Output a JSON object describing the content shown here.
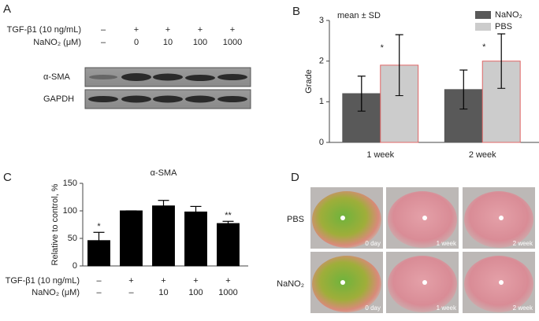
{
  "panels": {
    "a": "A",
    "b": "B",
    "c": "C",
    "d": "D"
  },
  "blot": {
    "rows": [
      {
        "label": "TGF-β1 (10 ng/mL)",
        "values": [
          "–",
          "+",
          "+",
          "+",
          "+"
        ]
      },
      {
        "label": "NaNO₂ (μM)",
        "values": [
          "–",
          "0",
          "10",
          "100",
          "1000"
        ]
      }
    ],
    "bands": [
      "α-SMA",
      "GAPDH"
    ]
  },
  "chart_data": [
    {
      "type": "bar",
      "annotation": "mean ± SD",
      "y_label": "Grade",
      "categories": [
        "1 week",
        "2 week"
      ],
      "series": [
        {
          "name": "NaNO₂",
          "color": "#595959",
          "edge": "#595959",
          "values": [
            1.2,
            1.3
          ],
          "errors": [
            0.43,
            0.48
          ],
          "annotations": [
            null,
            null
          ]
        },
        {
          "name": "PBS",
          "color": "#cccccc",
          "edge": "#e06666",
          "values": [
            1.9,
            2.0
          ],
          "errors": [
            0.75,
            0.67
          ],
          "annotations": [
            "*",
            "*"
          ]
        }
      ],
      "error_bars": "both",
      "ylim": [
        0,
        3
      ],
      "yticks": [
        0,
        1,
        2,
        3
      ],
      "legend": "top-right"
    },
    {
      "type": "bar",
      "title": "α-SMA",
      "y_label": "Relative to control, %",
      "category_rows": [
        {
          "label": "TGF-β1 (10 ng/mL)",
          "values": [
            "–",
            "+",
            "+",
            "+",
            "+"
          ]
        },
        {
          "label": "NaNO₂ (μM)",
          "values": [
            "–",
            "–",
            "10",
            "100",
            "1000"
          ]
        }
      ],
      "values": [
        46,
        100,
        109,
        98,
        77
      ],
      "errors": [
        15,
        0,
        10,
        10,
        4
      ],
      "color": "#000000",
      "annotations": [
        "*",
        null,
        null,
        null,
        "**"
      ],
      "error_bars": "upper",
      "ylim": [
        0,
        150
      ],
      "yticks": [
        0,
        50,
        100,
        150
      ]
    }
  ],
  "photos": {
    "rows": [
      "PBS",
      "NaNO₂"
    ],
    "times": [
      "0 day",
      "1 week",
      "2 week"
    ]
  }
}
